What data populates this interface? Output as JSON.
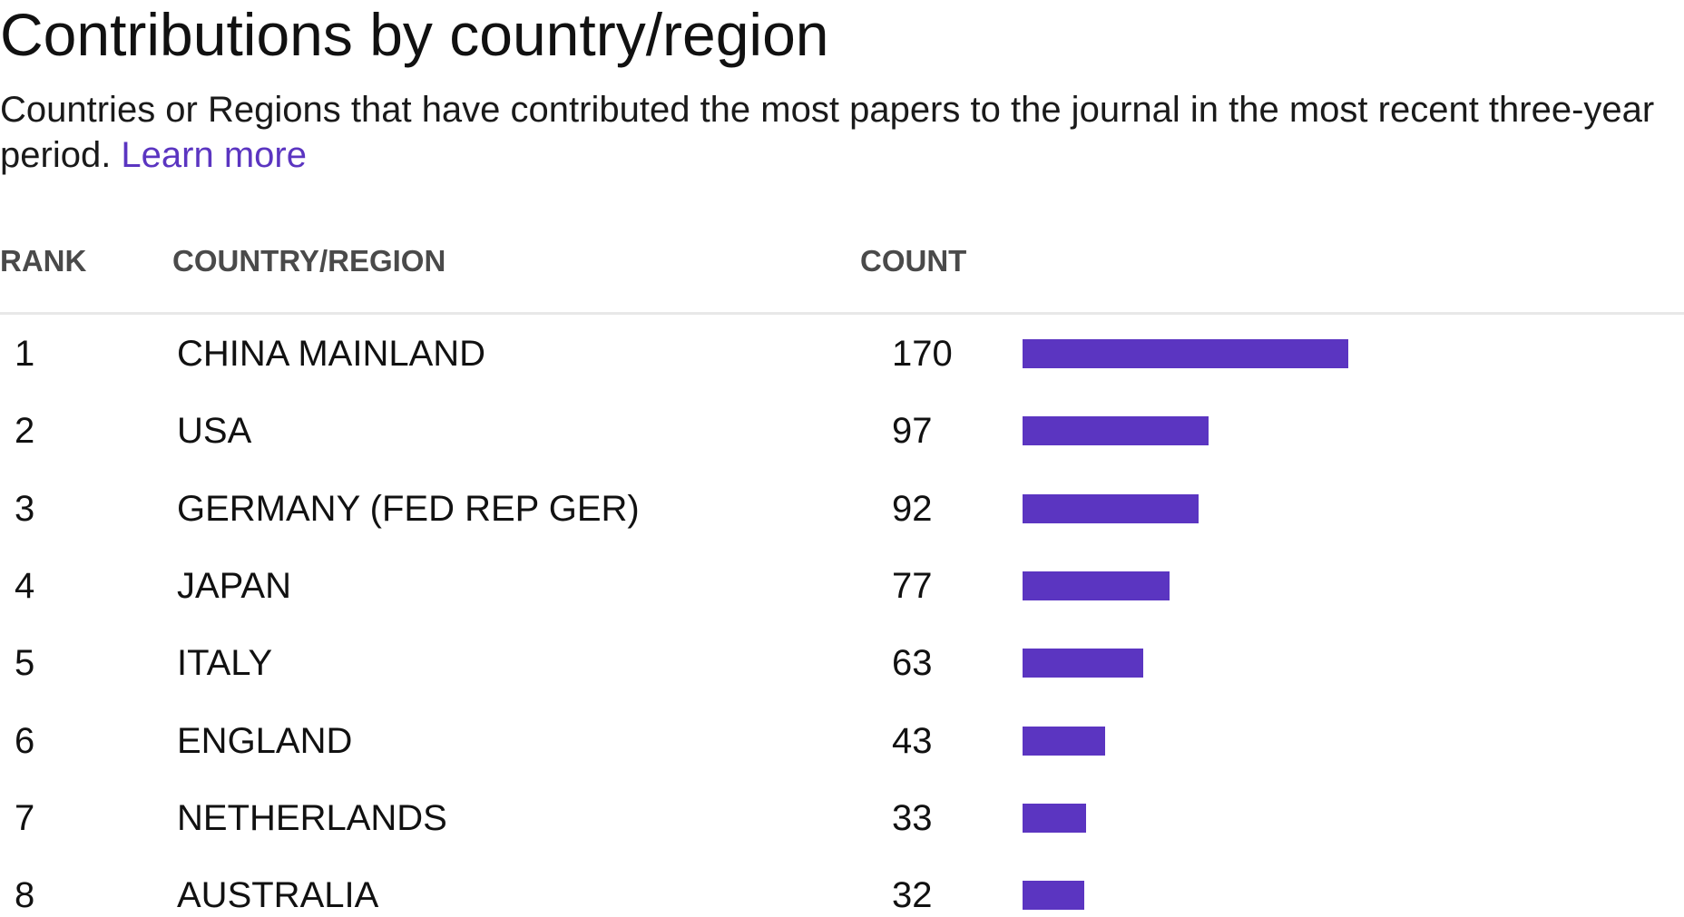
{
  "title": "Contributions by country/region",
  "subtitle": {
    "text": "Countries or Regions that have contributed the most papers to the journal in the most recent three-year period. ",
    "link_label": "Learn more"
  },
  "table": {
    "headers": {
      "rank": "RANK",
      "country": "COUNTRY/REGION",
      "count": "COUNT"
    }
  },
  "colors": {
    "bar": "#5b35c1",
    "link": "#5b35c1"
  },
  "chart_data": {
    "type": "bar",
    "orientation": "horizontal",
    "title": "Contributions by country/region",
    "xlabel": "",
    "ylabel": "",
    "grid": false,
    "ranks": [
      "1",
      "2",
      "3",
      "4",
      "5",
      "6",
      "7",
      "8"
    ],
    "categories": [
      "CHINA MAINLAND",
      "USA",
      "GERMANY (FED REP GER)",
      "JAPAN",
      "ITALY",
      "ENGLAND",
      "NETHERLANDS",
      "AUSTRALIA"
    ],
    "values": [
      170,
      97,
      92,
      77,
      63,
      43,
      33,
      32
    ]
  }
}
